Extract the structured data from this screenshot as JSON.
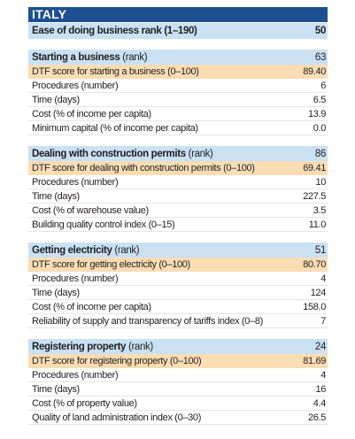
{
  "header": {
    "title": "ITALY",
    "rank_label": "Ease of doing business rank (1–190)",
    "rank_value": "50"
  },
  "sections": [
    {
      "title": "Starting a business",
      "title_suffix": "(rank)",
      "rank": "63",
      "rows": [
        {
          "label": "DTF score for starting a business (0–100)",
          "value": "89.40"
        },
        {
          "label": "Procedures (number)",
          "value": "6"
        },
        {
          "label": "Time (days)",
          "value": "6.5"
        },
        {
          "label": "Cost (% of income per capita)",
          "value": "13.9"
        },
        {
          "label": "Minimum capital (% of income per capita)",
          "value": "0.0"
        }
      ]
    },
    {
      "title": "Dealing with construction permits",
      "title_suffix": "(rank)",
      "rank": "86",
      "rows": [
        {
          "label": "DTF score for dealing with construction permits (0–100)",
          "value": "69.41"
        },
        {
          "label": "Procedures (number)",
          "value": "10"
        },
        {
          "label": "Time (days)",
          "value": "227.5"
        },
        {
          "label": "Cost (% of warehouse value)",
          "value": "3.5"
        },
        {
          "label": "Building quality control index (0–15)",
          "value": "11.0"
        }
      ]
    },
    {
      "title": "Getting electricity",
      "title_suffix": "(rank)",
      "rank": "51",
      "rows": [
        {
          "label": "DTF score for getting electricity (0–100)",
          "value": "80.70"
        },
        {
          "label": "Procedures (number)",
          "value": "4"
        },
        {
          "label": "Time (days)",
          "value": "124"
        },
        {
          "label": "Cost (% of income per capita)",
          "value": "158.0"
        },
        {
          "label": "Reliability of supply and transparency of tariffs index (0–8)",
          "value": "7"
        }
      ]
    },
    {
      "title": "Registering property",
      "title_suffix": "(rank)",
      "rank": "24",
      "rows": [
        {
          "label": "DTF score for registering property (0–100)",
          "value": "81.69"
        },
        {
          "label": "Procedures (number)",
          "value": "4"
        },
        {
          "label": "Time (days)",
          "value": "16"
        },
        {
          "label": "Cost (% of property value)",
          "value": "4.4"
        },
        {
          "label": "Quality of land administration index (0–30)",
          "value": "26.5"
        }
      ]
    }
  ]
}
